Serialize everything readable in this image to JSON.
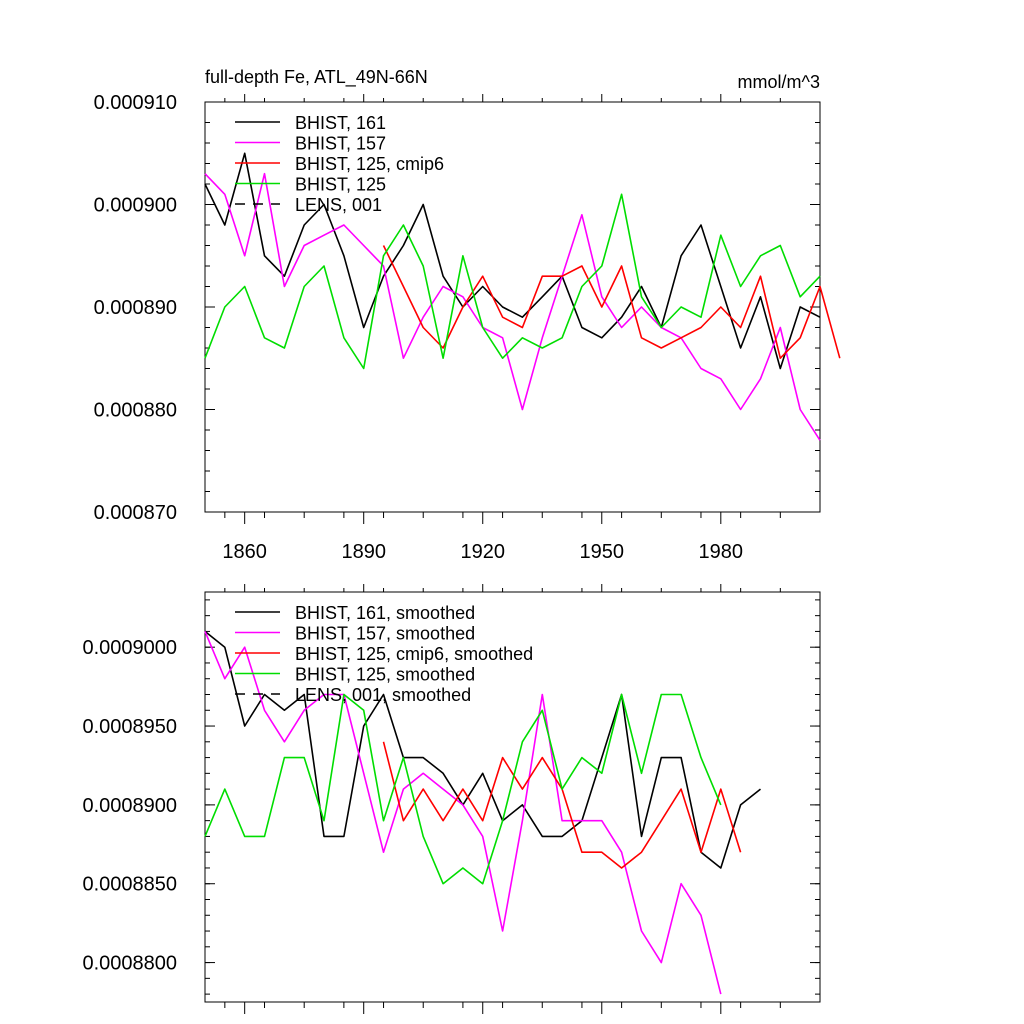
{
  "figure": {
    "title": "full-depth Fe, ATL_49N-66N",
    "units": "mmol/m^3"
  },
  "chart_data": [
    {
      "type": "line",
      "title": "full-depth Fe, ATL_49N-66N",
      "units_label": "mmol/m^3",
      "xlim": [
        1850,
        2005
      ],
      "ylim": [
        0.00087,
        0.00091
      ],
      "x_ticks": [
        1860,
        1890,
        1920,
        1950,
        1980
      ],
      "y_ticks": [
        0.00087,
        0.00088,
        0.00089,
        0.0009,
        0.00091
      ],
      "y_tick_labels": [
        "0.000870",
        "0.000880",
        "0.000890",
        "0.000900",
        "0.000910"
      ],
      "legend_position": "top-left",
      "legend": [
        {
          "label": "BHIST, 161",
          "color": "#000000",
          "dash": false
        },
        {
          "label": "BHIST, 157",
          "color": "#ff00ff",
          "dash": false
        },
        {
          "label": "BHIST, 125, cmip6",
          "color": "#ff0000",
          "dash": false
        },
        {
          "label": "BHIST, 125",
          "color": "#00dd00",
          "dash": false
        },
        {
          "label": "LENS, 001",
          "color": "#000000",
          "dash": true
        }
      ],
      "series": [
        {
          "name": "BHIST, 161",
          "color": "#000000",
          "start": 1850,
          "step": 5,
          "values": [
            0.000902,
            0.000898,
            0.000905,
            0.000895,
            0.000893,
            0.000898,
            0.0009,
            0.000895,
            0.000888,
            0.000893,
            0.000896,
            0.0009,
            0.000893,
            0.00089,
            0.000892,
            0.00089,
            0.000889,
            0.000891,
            0.000893,
            0.000888,
            0.000887,
            0.000889,
            0.000892,
            0.000888,
            0.000895,
            0.000898,
            0.000892,
            0.000886,
            0.000891,
            0.000884,
            0.00089,
            0.000889
          ]
        },
        {
          "name": "BHIST, 157",
          "color": "#ff00ff",
          "start": 1850,
          "step": 5,
          "values": [
            0.000903,
            0.000901,
            0.000895,
            0.000903,
            0.000892,
            0.000896,
            0.000897,
            0.000898,
            0.000896,
            0.000894,
            0.000885,
            0.000889,
            0.000892,
            0.000891,
            0.000888,
            0.000887,
            0.00088,
            0.000887,
            0.000893,
            0.000899,
            0.000891,
            0.000888,
            0.00089,
            0.000888,
            0.000887,
            0.000884,
            0.000883,
            0.00088,
            0.000883,
            0.000888,
            0.00088,
            0.000877
          ]
        },
        {
          "name": "BHIST, 125, cmip6",
          "color": "#ff0000",
          "start": 1895,
          "step": 5,
          "values": [
            0.000896,
            0.000892,
            0.000888,
            0.000886,
            0.00089,
            0.000893,
            0.000889,
            0.000888,
            0.000893,
            0.000893,
            0.000894,
            0.00089,
            0.000894,
            0.000887,
            0.000886,
            0.000887,
            0.000888,
            0.00089,
            0.000888,
            0.000893,
            0.000885,
            0.000887,
            0.000892,
            0.000885
          ]
        },
        {
          "name": "BHIST, 125",
          "color": "#00dd00",
          "start": 1850,
          "step": 5,
          "values": [
            0.000885,
            0.00089,
            0.000892,
            0.000887,
            0.000886,
            0.000892,
            0.000894,
            0.000887,
            0.000884,
            0.000895,
            0.000898,
            0.000894,
            0.000885,
            0.000895,
            0.000888,
            0.000885,
            0.000887,
            0.000886,
            0.000887,
            0.000892,
            0.000894,
            0.000901,
            0.000891,
            0.000888,
            0.00089,
            0.000889,
            0.000897,
            0.000892,
            0.000895,
            0.000896,
            0.000891,
            0.000893
          ]
        }
      ]
    },
    {
      "type": "line",
      "xlim": [
        1850,
        2005
      ],
      "ylim": [
        0.0008775,
        0.0009035
      ],
      "x_ticks": [
        1860,
        1890,
        1920,
        1950,
        1980
      ],
      "y_ticks": [
        0.00088,
        0.000885,
        0.00089,
        0.000895,
        0.0009
      ],
      "y_tick_labels": [
        "0.0008800",
        "0.0008850",
        "0.0008900",
        "0.0008950",
        "0.0009000"
      ],
      "legend_position": "top-left",
      "legend": [
        {
          "label": "BHIST, 161, smoothed",
          "color": "#000000",
          "dash": false
        },
        {
          "label": "BHIST, 157, smoothed",
          "color": "#ff00ff",
          "dash": false
        },
        {
          "label": "BHIST, 125, cmip6, smoothed",
          "color": "#ff0000",
          "dash": false
        },
        {
          "label": "BHIST, 125, smoothed",
          "color": "#00dd00",
          "dash": false
        },
        {
          "label": "LENS, 001, smoothed",
          "color": "#000000",
          "dash": true
        }
      ],
      "series": [
        {
          "name": "BHIST, 161, smoothed",
          "color": "#000000",
          "start": 1850,
          "step": 5,
          "values": [
            0.000901,
            0.0009,
            0.000895,
            0.000897,
            0.000896,
            0.000897,
            0.000888,
            0.000888,
            0.000895,
            0.000897,
            0.000893,
            0.000893,
            0.000892,
            0.00089,
            0.000892,
            0.000889,
            0.00089,
            0.000888,
            0.000888,
            0.000889,
            0.000893,
            0.000897,
            0.000888,
            0.000893,
            0.000893,
            0.000887,
            0.000886,
            0.00089,
            0.000891
          ]
        },
        {
          "name": "BHIST, 157, smoothed",
          "color": "#ff00ff",
          "start": 1850,
          "step": 5,
          "values": [
            0.000901,
            0.000898,
            0.0009,
            0.000896,
            0.000894,
            0.000896,
            0.000897,
            0.000897,
            0.000892,
            0.000887,
            0.000891,
            0.000892,
            0.000891,
            0.00089,
            0.000888,
            0.000882,
            0.000889,
            0.000897,
            0.000889,
            0.000889,
            0.000889,
            0.000887,
            0.000882,
            0.00088,
            0.000885,
            0.000883,
            0.000878
          ]
        },
        {
          "name": "BHIST, 125, cmip6, smoothed",
          "color": "#ff0000",
          "start": 1895,
          "step": 5,
          "values": [
            0.000894,
            0.000889,
            0.000891,
            0.000889,
            0.000891,
            0.000889,
            0.000893,
            0.000891,
            0.000893,
            0.000891,
            0.000887,
            0.000887,
            0.000886,
            0.000887,
            0.000889,
            0.000891,
            0.000887,
            0.000891,
            0.000887
          ]
        },
        {
          "name": "BHIST, 125, smoothed",
          "color": "#00dd00",
          "start": 1850,
          "step": 5,
          "values": [
            0.000888,
            0.000891,
            0.000888,
            0.000888,
            0.000893,
            0.000893,
            0.000889,
            0.000897,
            0.000896,
            0.000889,
            0.000893,
            0.000888,
            0.000885,
            0.000886,
            0.000885,
            0.000889,
            0.000894,
            0.000896,
            0.000891,
            0.000893,
            0.000892,
            0.000897,
            0.000892,
            0.000897,
            0.000897,
            0.000893,
            0.00089
          ]
        }
      ]
    }
  ]
}
